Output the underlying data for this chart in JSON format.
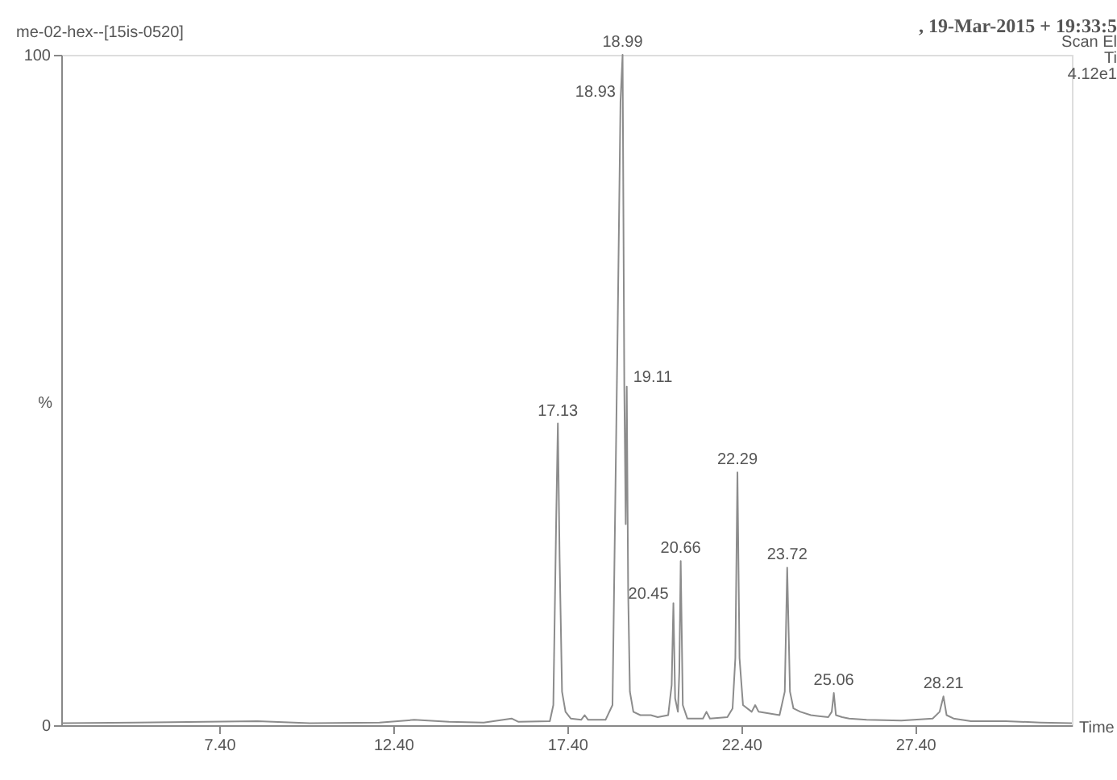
{
  "chart_data": {
    "type": "line",
    "title": "me-02-hex--[15is-0520]",
    "xlabel": "Time",
    "ylabel": "%",
    "annotations": [
      ", 19-Mar-2015 + 19:33:5",
      "Scan El",
      "Ti",
      "4.12e1",
      {
        "text": "17.13",
        "x": 17.13,
        "y": 45
      },
      {
        "text": "18.93",
        "x": 18.93,
        "y": 93
      },
      {
        "text": "18.99",
        "x": 18.99,
        "y": 100
      },
      {
        "text": "19.11",
        "x": 19.11,
        "y": 50.5
      },
      {
        "text": "20.45",
        "x": 20.45,
        "y": 18.2
      },
      {
        "text": "20.66",
        "x": 20.66,
        "y": 24.5
      },
      {
        "text": "22.29",
        "x": 22.29,
        "y": 37.7
      },
      {
        "text": "23.72",
        "x": 23.72,
        "y": 23.5
      },
      {
        "text": "25.06",
        "x": 25.06,
        "y": 4.8
      },
      {
        "text": "28.21",
        "x": 28.21,
        "y": 4.3
      }
    ],
    "series": [
      {
        "color": "#8c8c8c",
        "x": [
          2.86,
          5,
          7,
          8.5,
          10,
          12,
          13,
          14,
          15,
          15.8,
          16,
          16.9,
          17.0,
          17.08,
          17.13,
          17.18,
          17.25,
          17.35,
          17.5,
          17.8,
          17.9,
          18.0,
          18.5,
          18.7,
          18.85,
          18.93,
          18.99,
          19.04,
          19.08,
          19.11,
          19.15,
          19.2,
          19.3,
          19.5,
          19.8,
          20.0,
          20.3,
          20.4,
          20.45,
          20.5,
          20.58,
          20.62,
          20.66,
          20.72,
          20.85,
          21.3,
          21.4,
          21.5,
          22.0,
          22.15,
          22.23,
          22.29,
          22.35,
          22.45,
          22.7,
          22.8,
          22.9,
          23.5,
          23.65,
          23.72,
          23.8,
          23.9,
          24.1,
          24.4,
          24.9,
          25.0,
          25.06,
          25.12,
          25.3,
          25.5,
          26,
          27,
          27.9,
          28.1,
          28.21,
          28.3,
          28.5,
          29,
          30,
          31,
          31.9
        ],
        "values": [
          0.3,
          0.4,
          0.5,
          0.6,
          0.3,
          0.4,
          0.8,
          0.5,
          0.4,
          1.0,
          0.5,
          0.6,
          3,
          30,
          45,
          25,
          5,
          2,
          1,
          0.8,
          1.5,
          0.8,
          0.8,
          3,
          60,
          93,
          100,
          50,
          30,
          50.5,
          20,
          5,
          2,
          1.5,
          1.5,
          1.2,
          1.5,
          6,
          18.2,
          4,
          2,
          8,
          24.5,
          3,
          1,
          1,
          2,
          1,
          1.2,
          2.5,
          10,
          37.7,
          10,
          3,
          2,
          3,
          2,
          1.5,
          5,
          23.5,
          5,
          2.5,
          2,
          1.5,
          1.2,
          2,
          4.8,
          1.5,
          1.2,
          1.0,
          0.8,
          0.7,
          1.0,
          2,
          4.3,
          1.5,
          1.0,
          0.6,
          0.6,
          0.4,
          0.3
        ]
      }
    ],
    "xlim": [
      2.86,
      31.9
    ],
    "ylim": [
      0,
      100
    ],
    "xticks": [
      {
        "value": 7.4,
        "label": "7.40"
      },
      {
        "value": 12.4,
        "label": "12.40"
      },
      {
        "value": 17.4,
        "label": "17.40"
      },
      {
        "value": 22.4,
        "label": "22.40"
      },
      {
        "value": 27.4,
        "label": "27.40"
      }
    ],
    "yticks": [
      0,
      100
    ],
    "grid": false,
    "marker": "none",
    "line_style": "solid"
  }
}
